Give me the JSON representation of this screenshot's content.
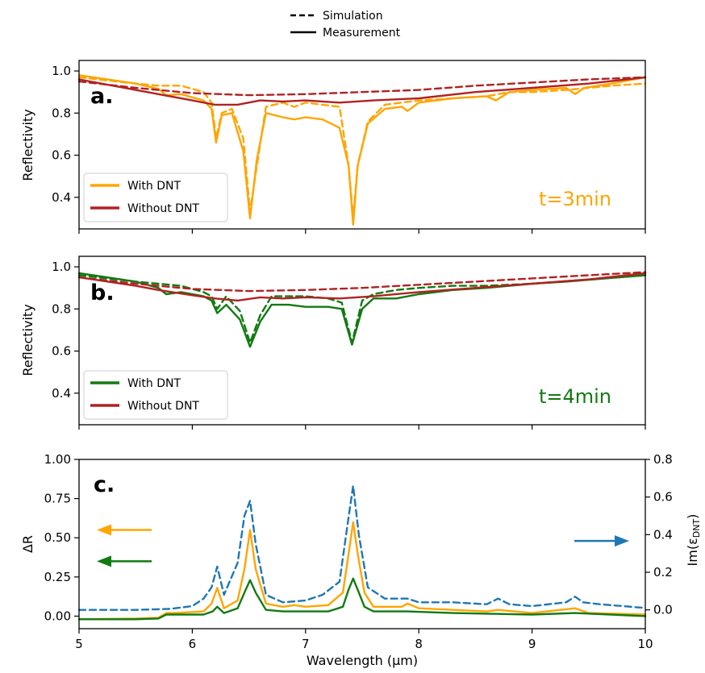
{
  "top_legend": {
    "dashed_label": "Simulation",
    "solid_label": "Measurement"
  },
  "colors": {
    "with_a": "#FFA500",
    "with_b": "#127A12",
    "without": "#B22222",
    "im_eps": "#1F77B4",
    "arrow_a": "#FFA500",
    "arrow_b": "#127A12",
    "arrow_right": "#1F77B4"
  },
  "chart_data": [
    {
      "id": "a",
      "type": "line",
      "panel_label": "a.",
      "ylabel": "Reflectivity",
      "xlim": [
        5,
        10
      ],
      "ylim": [
        0.25,
        1.05
      ],
      "yticks": [
        0.4,
        0.6,
        0.8,
        1.0
      ],
      "ytick_labels": [
        "0.4",
        "0.6",
        "0.8",
        "1.0"
      ],
      "note": "t=3min",
      "legend": {
        "position": "lower-left",
        "entries": [
          "With DNT",
          "Without DNT"
        ]
      },
      "series": [
        {
          "name": "With DNT",
          "style": "solid",
          "x": [
            5,
            5.5,
            5.7,
            5.77,
            5.9,
            6.1,
            6.17,
            6.21,
            6.26,
            6.35,
            6.45,
            6.51,
            6.57,
            6.65,
            6.8,
            6.9,
            7.0,
            7.15,
            7.3,
            7.38,
            7.42,
            7.46,
            7.55,
            7.7,
            7.85,
            7.9,
            8.0,
            8.3,
            8.6,
            8.68,
            8.8,
            9.0,
            9.3,
            9.38,
            9.46,
            9.7,
            10
          ],
          "y": [
            0.98,
            0.94,
            0.915,
            0.885,
            0.89,
            0.86,
            0.82,
            0.66,
            0.79,
            0.8,
            0.62,
            0.3,
            0.58,
            0.8,
            0.78,
            0.77,
            0.78,
            0.77,
            0.73,
            0.55,
            0.27,
            0.55,
            0.75,
            0.82,
            0.83,
            0.81,
            0.85,
            0.87,
            0.88,
            0.86,
            0.9,
            0.91,
            0.92,
            0.89,
            0.92,
            0.94,
            0.97
          ]
        },
        {
          "name": "With DNT",
          "style": "dashed",
          "x": [
            5,
            5.5,
            5.7,
            5.9,
            6.1,
            6.17,
            6.21,
            6.26,
            6.35,
            6.45,
            6.51,
            6.57,
            6.65,
            6.8,
            6.9,
            7.0,
            7.15,
            7.3,
            7.38,
            7.42,
            7.46,
            7.55,
            7.7,
            7.85,
            8.0,
            8.3,
            8.6,
            8.8,
            9.0,
            9.3,
            9.5,
            9.7,
            10
          ],
          "y": [
            0.97,
            0.94,
            0.93,
            0.93,
            0.9,
            0.85,
            0.68,
            0.8,
            0.82,
            0.68,
            0.33,
            0.55,
            0.83,
            0.85,
            0.83,
            0.85,
            0.84,
            0.83,
            0.55,
            0.3,
            0.55,
            0.76,
            0.84,
            0.85,
            0.86,
            0.87,
            0.88,
            0.9,
            0.9,
            0.91,
            0.92,
            0.93,
            0.94
          ]
        },
        {
          "name": "Without DNT",
          "style": "solid",
          "x": [
            5,
            5.5,
            5.7,
            6.0,
            6.2,
            6.4,
            6.6,
            6.8,
            7.0,
            7.3,
            7.6,
            8.0,
            8.5,
            9.0,
            9.5,
            10
          ],
          "y": [
            0.96,
            0.91,
            0.89,
            0.86,
            0.84,
            0.84,
            0.86,
            0.855,
            0.86,
            0.85,
            0.86,
            0.87,
            0.9,
            0.92,
            0.94,
            0.97
          ]
        },
        {
          "name": "Without DNT",
          "style": "dashed",
          "x": [
            5,
            5.5,
            6.0,
            6.5,
            7.0,
            7.5,
            8.0,
            8.5,
            9.0,
            9.5,
            10
          ],
          "y": [
            0.95,
            0.92,
            0.895,
            0.885,
            0.89,
            0.9,
            0.91,
            0.93,
            0.945,
            0.96,
            0.97
          ]
        }
      ]
    },
    {
      "id": "b",
      "type": "line",
      "panel_label": "b.",
      "ylabel": "Reflectivity",
      "xlim": [
        5,
        10
      ],
      "ylim": [
        0.25,
        1.05
      ],
      "yticks": [
        0.4,
        0.6,
        0.8,
        1.0
      ],
      "ytick_labels": [
        "0.4",
        "0.6",
        "0.8",
        "1.0"
      ],
      "note": "t=4min",
      "legend": {
        "position": "lower-left",
        "entries": [
          "With DNT",
          "Without DNT"
        ]
      },
      "series": [
        {
          "name": "With DNT",
          "style": "solid",
          "x": [
            5,
            5.5,
            5.7,
            5.77,
            5.9,
            6.1,
            6.17,
            6.22,
            6.3,
            6.42,
            6.51,
            6.6,
            6.7,
            6.85,
            7.0,
            7.2,
            7.32,
            7.41,
            7.5,
            7.6,
            7.8,
            8.0,
            8.3,
            8.6,
            9.0,
            9.3,
            10
          ],
          "y": [
            0.97,
            0.93,
            0.9,
            0.87,
            0.88,
            0.86,
            0.84,
            0.78,
            0.82,
            0.75,
            0.62,
            0.74,
            0.82,
            0.82,
            0.81,
            0.81,
            0.8,
            0.63,
            0.8,
            0.85,
            0.85,
            0.87,
            0.89,
            0.9,
            0.92,
            0.93,
            0.96
          ]
        },
        {
          "name": "With DNT",
          "style": "dashed",
          "x": [
            5,
            5.5,
            5.7,
            5.9,
            6.1,
            6.17,
            6.22,
            6.3,
            6.42,
            6.51,
            6.6,
            6.7,
            6.85,
            7.0,
            7.2,
            7.32,
            7.41,
            7.5,
            7.6,
            7.8,
            8.0,
            8.3,
            8.6,
            9.0,
            9.5,
            10
          ],
          "y": [
            0.96,
            0.93,
            0.92,
            0.91,
            0.88,
            0.86,
            0.8,
            0.86,
            0.79,
            0.64,
            0.77,
            0.86,
            0.86,
            0.86,
            0.85,
            0.83,
            0.64,
            0.84,
            0.87,
            0.89,
            0.9,
            0.91,
            0.91,
            0.92,
            0.94,
            0.96
          ]
        },
        {
          "name": "Without DNT",
          "style": "solid",
          "x": [
            5,
            5.5,
            5.7,
            6.0,
            6.2,
            6.4,
            6.6,
            6.8,
            7.0,
            7.3,
            7.6,
            8.0,
            8.5,
            9.0,
            9.5,
            10
          ],
          "y": [
            0.95,
            0.91,
            0.89,
            0.865,
            0.85,
            0.84,
            0.855,
            0.85,
            0.855,
            0.85,
            0.86,
            0.88,
            0.9,
            0.92,
            0.94,
            0.97
          ]
        },
        {
          "name": "Without DNT",
          "style": "dashed",
          "x": [
            5,
            5.5,
            6.0,
            6.5,
            7.0,
            7.5,
            8.0,
            8.5,
            9.0,
            9.5,
            10
          ],
          "y": [
            0.95,
            0.92,
            0.895,
            0.885,
            0.89,
            0.9,
            0.915,
            0.93,
            0.945,
            0.96,
            0.975
          ]
        }
      ]
    },
    {
      "id": "c",
      "type": "line",
      "panel_label": "c.",
      "xlabel": "Wavelength (μm)",
      "ylabel": "ΔR",
      "ylabel_right_main": "Im(ε",
      "ylabel_right_sub": "DNT",
      "ylabel_right_close": ")",
      "xlim": [
        5,
        10
      ],
      "xticks": [
        5,
        6,
        7,
        8,
        9,
        10
      ],
      "xtick_labels": [
        "5",
        "6",
        "7",
        "8",
        "9",
        "10"
      ],
      "ylim": [
        -0.08,
        1.0
      ],
      "yticks": [
        0.0,
        0.25,
        0.5,
        0.75,
        1.0
      ],
      "ytick_labels": [
        "0.00",
        "0.25",
        "0.50",
        "0.75",
        "1.00"
      ],
      "ylim_right": [
        -0.1,
        0.8
      ],
      "yticks_right": [
        0.0,
        0.2,
        0.4,
        0.6,
        0.8
      ],
      "ytick_labels_right": [
        "0.0",
        "0.2",
        "0.4",
        "0.6",
        "0.8"
      ],
      "series": [
        {
          "name": "ΔR t=3min",
          "style": "solid",
          "axis": "left",
          "x": [
            5,
            5.5,
            5.7,
            5.77,
            5.85,
            6.1,
            6.17,
            6.22,
            6.28,
            6.4,
            6.46,
            6.51,
            6.56,
            6.65,
            6.8,
            6.9,
            7.0,
            7.2,
            7.33,
            7.38,
            7.42,
            7.46,
            7.52,
            7.6,
            7.85,
            7.9,
            8.0,
            8.3,
            8.6,
            8.7,
            9.0,
            9.38,
            9.5,
            10
          ],
          "y": [
            -0.02,
            -0.015,
            -0.01,
            0.02,
            0.02,
            0.03,
            0.08,
            0.18,
            0.05,
            0.1,
            0.3,
            0.55,
            0.3,
            0.08,
            0.06,
            0.07,
            0.06,
            0.07,
            0.15,
            0.4,
            0.6,
            0.4,
            0.15,
            0.06,
            0.06,
            0.08,
            0.05,
            0.04,
            0.03,
            0.04,
            0.02,
            0.05,
            0.02,
            0.01
          ]
        },
        {
          "name": "ΔR t=4min",
          "style": "solid",
          "axis": "left",
          "x": [
            5,
            5.5,
            5.7,
            5.77,
            5.85,
            6.1,
            6.18,
            6.22,
            6.28,
            6.4,
            6.46,
            6.51,
            6.56,
            6.65,
            6.8,
            7.0,
            7.2,
            7.33,
            7.38,
            7.42,
            7.46,
            7.52,
            7.6,
            7.9,
            8.3,
            9.0,
            9.38,
            10
          ],
          "y": [
            -0.02,
            -0.02,
            -0.015,
            0.01,
            0.01,
            0.01,
            0.03,
            0.06,
            0.02,
            0.05,
            0.15,
            0.23,
            0.15,
            0.04,
            0.03,
            0.03,
            0.03,
            0.06,
            0.17,
            0.24,
            0.17,
            0.06,
            0.03,
            0.03,
            0.02,
            0.01,
            0.02,
            0.0
          ]
        },
        {
          "name": "Im(εDNT)",
          "style": "dashed",
          "axis": "right",
          "x": [
            5,
            5.5,
            5.8,
            6.0,
            6.1,
            6.17,
            6.22,
            6.28,
            6.4,
            6.46,
            6.51,
            6.56,
            6.65,
            6.8,
            7.0,
            7.15,
            7.3,
            7.37,
            7.42,
            7.47,
            7.55,
            7.7,
            7.9,
            8.0,
            8.3,
            8.6,
            8.7,
            8.8,
            9.0,
            9.3,
            9.38,
            9.45,
            9.6,
            10
          ],
          "y": [
            0.0,
            0.0,
            0.005,
            0.02,
            0.06,
            0.12,
            0.23,
            0.08,
            0.25,
            0.5,
            0.58,
            0.35,
            0.08,
            0.04,
            0.05,
            0.08,
            0.15,
            0.45,
            0.66,
            0.4,
            0.12,
            0.06,
            0.06,
            0.04,
            0.04,
            0.03,
            0.06,
            0.03,
            0.02,
            0.04,
            0.07,
            0.04,
            0.03,
            0.01
          ]
        }
      ],
      "arrows": [
        {
          "name": "arrow-orange-left",
          "direction": "left",
          "y": 0.55,
          "color_key": "arrow_a"
        },
        {
          "name": "arrow-green-left",
          "direction": "left",
          "y": 0.35,
          "color_key": "arrow_b"
        },
        {
          "name": "arrow-blue-right",
          "direction": "right",
          "y": 0.48,
          "color_key": "arrow_right"
        }
      ]
    }
  ]
}
